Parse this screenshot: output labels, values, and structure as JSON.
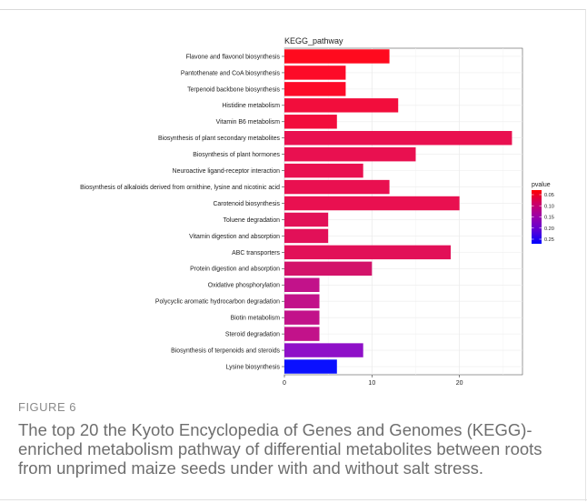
{
  "chart_data": {
    "type": "bar",
    "orientation": "horizontal",
    "title": "KEGG_pathway",
    "xlabel": "",
    "ylabel": "",
    "xlim": [
      0,
      27.2
    ],
    "x_ticks": [
      0,
      10,
      20
    ],
    "grid": true,
    "categories": [
      "Flavone and flavonol biosynthesis",
      "Pantothenate and CoA biosynthesis",
      "Terpenoid backbone biosynthesis",
      "Histidine metabolism",
      "Vitamin B6 metabolism",
      "Biosynthesis of plant secondary metabolites",
      "Biosynthesis of plant hormones",
      "Neuroactive ligand-receptor interaction",
      "Biosynthesis of alkaloids derived from ornithine, lysine and nicotinic acid",
      "Carotenoid biosynthesis",
      "Toluene degradation",
      "Vitamin digestion and absorption",
      "ABC transporters",
      "Protein digestion and absorption",
      "Oxidative phosphorylation",
      "Polycyclic aromatic hydrocarbon degradation",
      "Biotin metabolism",
      "Steroid degradation",
      "Biosynthesis of terpenoids and steroids",
      "Lysine biosynthesis"
    ],
    "values": [
      12,
      7,
      7,
      13,
      6,
      26,
      15,
      9,
      12,
      20,
      5,
      5,
      19,
      10,
      4,
      4,
      4,
      4,
      9,
      6
    ],
    "pvalues": [
      0.03,
      0.04,
      0.04,
      0.07,
      0.07,
      0.09,
      0.09,
      0.09,
      0.09,
      0.09,
      0.1,
      0.1,
      0.1,
      0.12,
      0.15,
      0.15,
      0.15,
      0.15,
      0.19,
      0.28
    ],
    "colors": [
      "#ff0a1e",
      "#fd0b28",
      "#fd0b28",
      "#f20d3c",
      "#f20d3c",
      "#e91050",
      "#e91050",
      "#e91050",
      "#e91050",
      "#e91050",
      "#e21058",
      "#e21058",
      "#e21058",
      "#d3136a",
      "#c2128a",
      "#c2128a",
      "#c2128a",
      "#c2128a",
      "#8f10c8",
      "#0a10ff"
    ],
    "legend": {
      "title": "pvalue",
      "position": "right",
      "ticks": [
        "0.05",
        "0.10",
        "0.15",
        "0.20",
        "0.25"
      ],
      "gradient_colors": [
        "#ff0000",
        "#cc0066",
        "#9900aa",
        "#5c00d6",
        "#0000ff"
      ]
    }
  },
  "caption": {
    "label": "FIGURE 6",
    "text": "The top 20 the Kyoto Encyclopedia of Genes and Genomes (KEGG)-enriched metabolism pathway of differential metabolites between roots from unprimed maize seeds under with and without salt stress."
  }
}
